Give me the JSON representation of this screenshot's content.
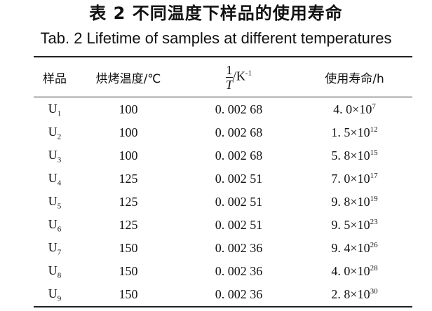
{
  "title_cn": "表 2   不同温度下样品的使用寿命",
  "title_en": "Tab. 2    Lifetime of samples at different temperatures",
  "headers": {
    "sample": "样品",
    "temp": "烘烤温度/℃",
    "inv_num": "1",
    "inv_den": "T",
    "inv_unit": "/K",
    "inv_exp": "-1",
    "life": "使用寿命/h"
  },
  "rows": [
    {
      "sample": "U",
      "sub": "1",
      "temp": "100",
      "inv": "0. 002 68",
      "life": "4. 0×10",
      "exp": "7"
    },
    {
      "sample": "U",
      "sub": "2",
      "temp": "100",
      "inv": "0. 002 68",
      "life": "1. 5×10",
      "exp": "12"
    },
    {
      "sample": "U",
      "sub": "3",
      "temp": "100",
      "inv": "0. 002 68",
      "life": "5. 8×10",
      "exp": "15"
    },
    {
      "sample": "U",
      "sub": "4",
      "temp": "125",
      "inv": "0. 002 51",
      "life": "7. 0×10",
      "exp": "17"
    },
    {
      "sample": "U",
      "sub": "5",
      "temp": "125",
      "inv": "0. 002 51",
      "life": "9. 8×10",
      "exp": "19"
    },
    {
      "sample": "U",
      "sub": "6",
      "temp": "125",
      "inv": "0. 002 51",
      "life": "9. 5×10",
      "exp": "23"
    },
    {
      "sample": "U",
      "sub": "7",
      "temp": "150",
      "inv": "0. 002 36",
      "life": "9. 4×10",
      "exp": "26"
    },
    {
      "sample": "U",
      "sub": "8",
      "temp": "150",
      "inv": "0. 002 36",
      "life": "4. 0×10",
      "exp": "28"
    },
    {
      "sample": "U",
      "sub": "9",
      "temp": "150",
      "inv": "0. 002 36",
      "life": "2. 8×10",
      "exp": "30"
    }
  ]
}
